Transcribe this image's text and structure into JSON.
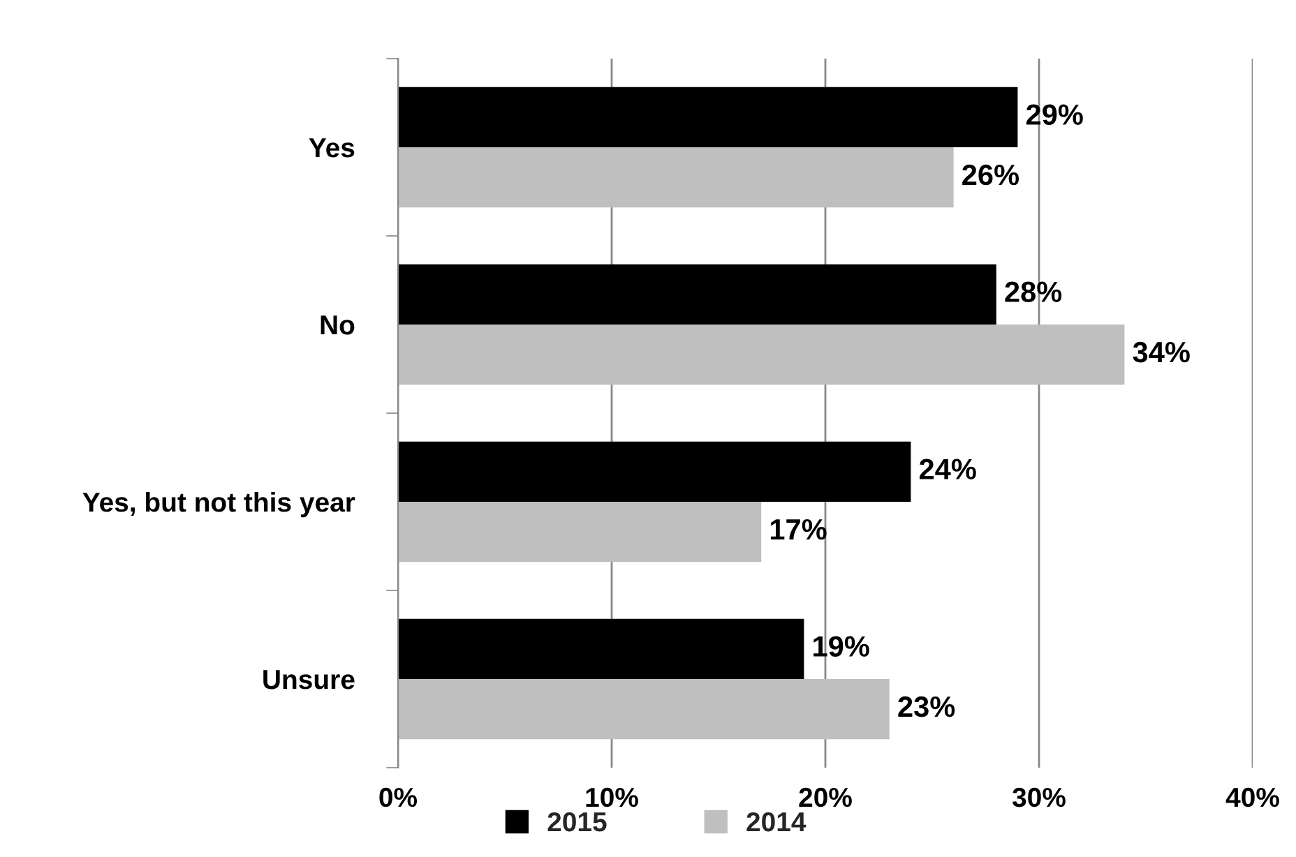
{
  "chart_data": {
    "type": "bar",
    "orientation": "horizontal",
    "categories": [
      "Yes",
      "No",
      "Yes, but not this year",
      "Unsure"
    ],
    "series": [
      {
        "name": "2015",
        "color": "#000000",
        "values": [
          29,
          28,
          24,
          19
        ],
        "value_labels": [
          "29%",
          "28%",
          "24%",
          "19%"
        ]
      },
      {
        "name": "2014",
        "color": "#bfbfbf",
        "values": [
          26,
          34,
          17,
          23
        ],
        "value_labels": [
          "26%",
          "34%",
          "17%",
          "23%"
        ]
      }
    ],
    "xlim": [
      0,
      40
    ],
    "xticks": [
      {
        "value": 0,
        "label": "0%"
      },
      {
        "value": 10,
        "label": "10%"
      },
      {
        "value": 20,
        "label": "20%"
      },
      {
        "value": 30,
        "label": "30%"
      },
      {
        "value": 40,
        "label": "40%"
      }
    ],
    "grid": "x",
    "legend": "bottom"
  }
}
